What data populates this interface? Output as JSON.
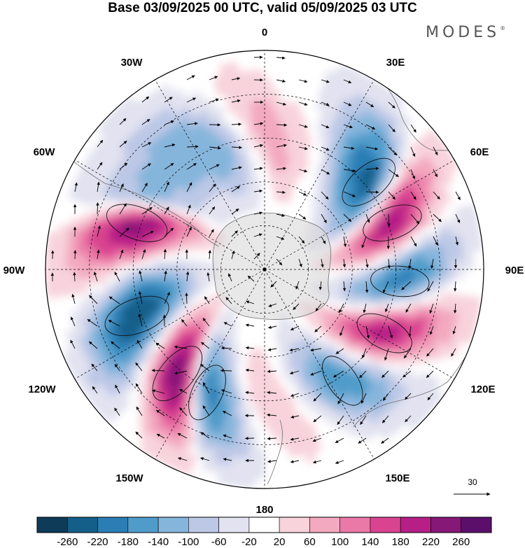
{
  "title": "Base 03/09/2025 00 UTC, valid 05/09/2025 03 UTC",
  "brand": "MODES",
  "brand_mark": "®",
  "meridian_labels": {
    "m0": "0",
    "e30": "30E",
    "e60": "60E",
    "e90": "90E",
    "e120": "120E",
    "e150": "150E",
    "m180": "180",
    "w150": "150W",
    "w120": "120W",
    "w90": "90W",
    "w60": "60W",
    "w30": "30W"
  },
  "reference_vector": {
    "label": "30"
  },
  "colorbar": {
    "levels": [
      "-260",
      "-220",
      "-180",
      "-140",
      "-100",
      "-60",
      "-20",
      "20",
      "60",
      "100",
      "140",
      "180",
      "220",
      "260"
    ],
    "colors": [
      "#0d3b58",
      "#135f8a",
      "#2a7eb5",
      "#4f9ccb",
      "#86b5dc",
      "#bcc8e6",
      "#e2e2f0",
      "#ffffff",
      "#f8d3dc",
      "#f3a9c0",
      "#eb79a7",
      "#d9438f",
      "#b61f86",
      "#861878",
      "#5b0f6b"
    ]
  },
  "map_data": {
    "projection": "south-polar-stereographic",
    "field": "geopotential height anomaly with wind vectors",
    "anomaly_cells": [
      {
        "lon": 15,
        "value": 30
      },
      {
        "lon": 50,
        "value": -230
      },
      {
        "lon": 70,
        "value": 210
      },
      {
        "lon": 95,
        "value": -190
      },
      {
        "lon": 118,
        "value": 200
      },
      {
        "lon": 145,
        "value": -170
      },
      {
        "lon": 178,
        "value": 60
      },
      {
        "lon": -155,
        "value": -190
      },
      {
        "lon": -140,
        "value": 250
      },
      {
        "lon": -110,
        "value": -260
      },
      {
        "lon": -70,
        "value": 230
      },
      {
        "lon": -55,
        "value": -110
      },
      {
        "lon": -25,
        "value": -140
      },
      {
        "lon": 5,
        "value": 90
      }
    ]
  }
}
